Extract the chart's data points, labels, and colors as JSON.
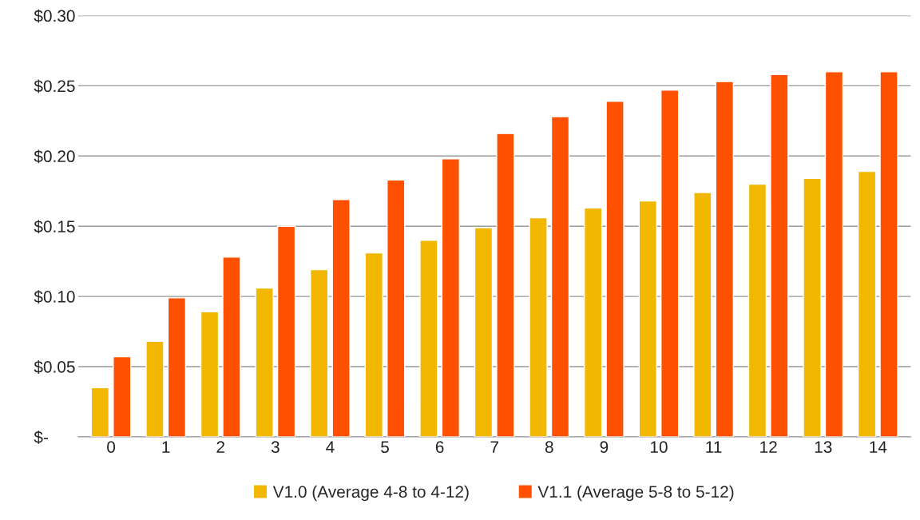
{
  "chart_data": {
    "type": "bar",
    "categories": [
      "0",
      "1",
      "2",
      "3",
      "4",
      "5",
      "6",
      "7",
      "8",
      "9",
      "10",
      "11",
      "12",
      "13",
      "14"
    ],
    "series": [
      {
        "name": "V1.0 (Average 4-8 to 4-12)",
        "color": "#f2b700",
        "values": [
          0.035,
          0.068,
          0.089,
          0.106,
          0.119,
          0.131,
          0.14,
          0.149,
          0.156,
          0.163,
          0.168,
          0.174,
          0.18,
          0.184,
          0.189
        ]
      },
      {
        "name": "V1.1 (Average 5-8 to 5-12)",
        "color": "#ff5000",
        "values": [
          0.057,
          0.099,
          0.128,
          0.15,
          0.169,
          0.183,
          0.198,
          0.216,
          0.228,
          0.239,
          0.247,
          0.253,
          0.258,
          0.26,
          0.26
        ]
      }
    ],
    "ylim": [
      0,
      0.3
    ],
    "yticks": [
      {
        "value": 0,
        "label": "$-"
      },
      {
        "value": 0.05,
        "label": "$0.05"
      },
      {
        "value": 0.1,
        "label": "$0.10"
      },
      {
        "value": 0.15,
        "label": "$0.15"
      },
      {
        "value": 0.2,
        "label": "$0.20"
      },
      {
        "value": 0.25,
        "label": "$0.25"
      },
      {
        "value": 0.3,
        "label": "$0.30"
      }
    ],
    "grid": "y",
    "legend": "bottom"
  }
}
